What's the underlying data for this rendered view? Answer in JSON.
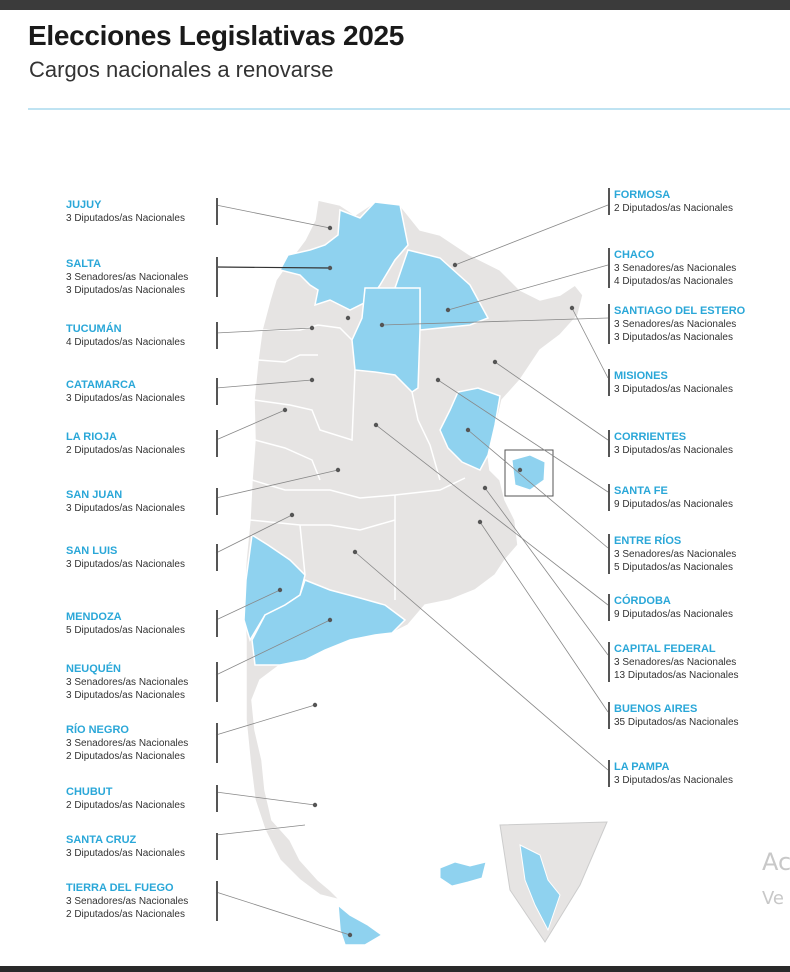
{
  "header": {
    "title": "Elecciones Legislativas 2025",
    "subtitle": "Cargos nacionales a renovarse"
  },
  "colors": {
    "renews_senators": "#8fd2ef",
    "province_fill": "#e6e4e3",
    "border": "#ffffff",
    "label_name": "#2aa7d8"
  },
  "provinces_left": [
    {
      "name": "JUJUY",
      "lines": [
        "3 Diputados/as Nacionales"
      ]
    },
    {
      "name": "SALTA",
      "lines": [
        "3 Senadores/as Nacionales",
        "3 Diputados/as Nacionales"
      ]
    },
    {
      "name": "TUCUMÁN",
      "lines": [
        "4 Diputados/as Nacionales"
      ]
    },
    {
      "name": "CATAMARCA",
      "lines": [
        "3 Diputados/as Nacionales"
      ]
    },
    {
      "name": "LA RIOJA",
      "lines": [
        "2 Diputados/as Nacionales"
      ]
    },
    {
      "name": "SAN JUAN",
      "lines": [
        "3 Diputados/as Nacionales"
      ]
    },
    {
      "name": "SAN LUIS",
      "lines": [
        "3 Diputados/as Nacionales"
      ]
    },
    {
      "name": "MENDOZA",
      "lines": [
        "5 Diputados/as Nacionales"
      ]
    },
    {
      "name": "NEUQUÉN",
      "lines": [
        "3 Senadores/as Nacionales",
        "3 Diputados/as Nacionales"
      ]
    },
    {
      "name": "RÍO NEGRO",
      "lines": [
        "3 Senadores/as Nacionales",
        "2 Diputados/as Nacionales"
      ]
    },
    {
      "name": "CHUBUT",
      "lines": [
        "2 Diputados/as Nacionales"
      ]
    },
    {
      "name": "SANTA CRUZ",
      "lines": [
        "3 Diputados/as Nacionales"
      ]
    },
    {
      "name": "TIERRA DEL FUEGO",
      "lines": [
        "3 Senadores/as Nacionales",
        "2 Diputados/as Nacionales"
      ]
    }
  ],
  "provinces_right": [
    {
      "name": "FORMOSA",
      "lines": [
        "2 Diputados/as Nacionales"
      ]
    },
    {
      "name": "CHACO",
      "lines": [
        "3 Senadores/as Nacionales",
        "4 Diputados/as Nacionales"
      ]
    },
    {
      "name": "SANTIAGO DEL ESTERO",
      "lines": [
        "3 Senadores/as Nacionales",
        "3 Diputados/as Nacionales"
      ]
    },
    {
      "name": "MISIONES",
      "lines": [
        "3 Diputados/as Nacionales"
      ]
    },
    {
      "name": "CORRIENTES",
      "lines": [
        "3 Diputados/as Nacionales"
      ]
    },
    {
      "name": "SANTA FE",
      "lines": [
        "9 Diputados/as Nacionales"
      ]
    },
    {
      "name": "ENTRE RÍOS",
      "lines": [
        "3 Senadores/as Nacionales",
        "5 Diputados/as Nacionales"
      ]
    },
    {
      "name": "CÓRDOBA",
      "lines": [
        "9 Diputados/as Nacionales"
      ]
    },
    {
      "name": "CAPITAL FEDERAL",
      "lines": [
        "3 Senadores/as Nacionales",
        "13 Diputados/as Nacionales"
      ]
    },
    {
      "name": "BUENOS AIRES",
      "lines": [
        "35 Diputados/as Nacionales"
      ]
    },
    {
      "name": "LA PAMPA",
      "lines": [
        "3 Diputados/as Nacionales"
      ]
    }
  ],
  "watermark": {
    "line1": "Ac",
    "line2": "Ve"
  }
}
